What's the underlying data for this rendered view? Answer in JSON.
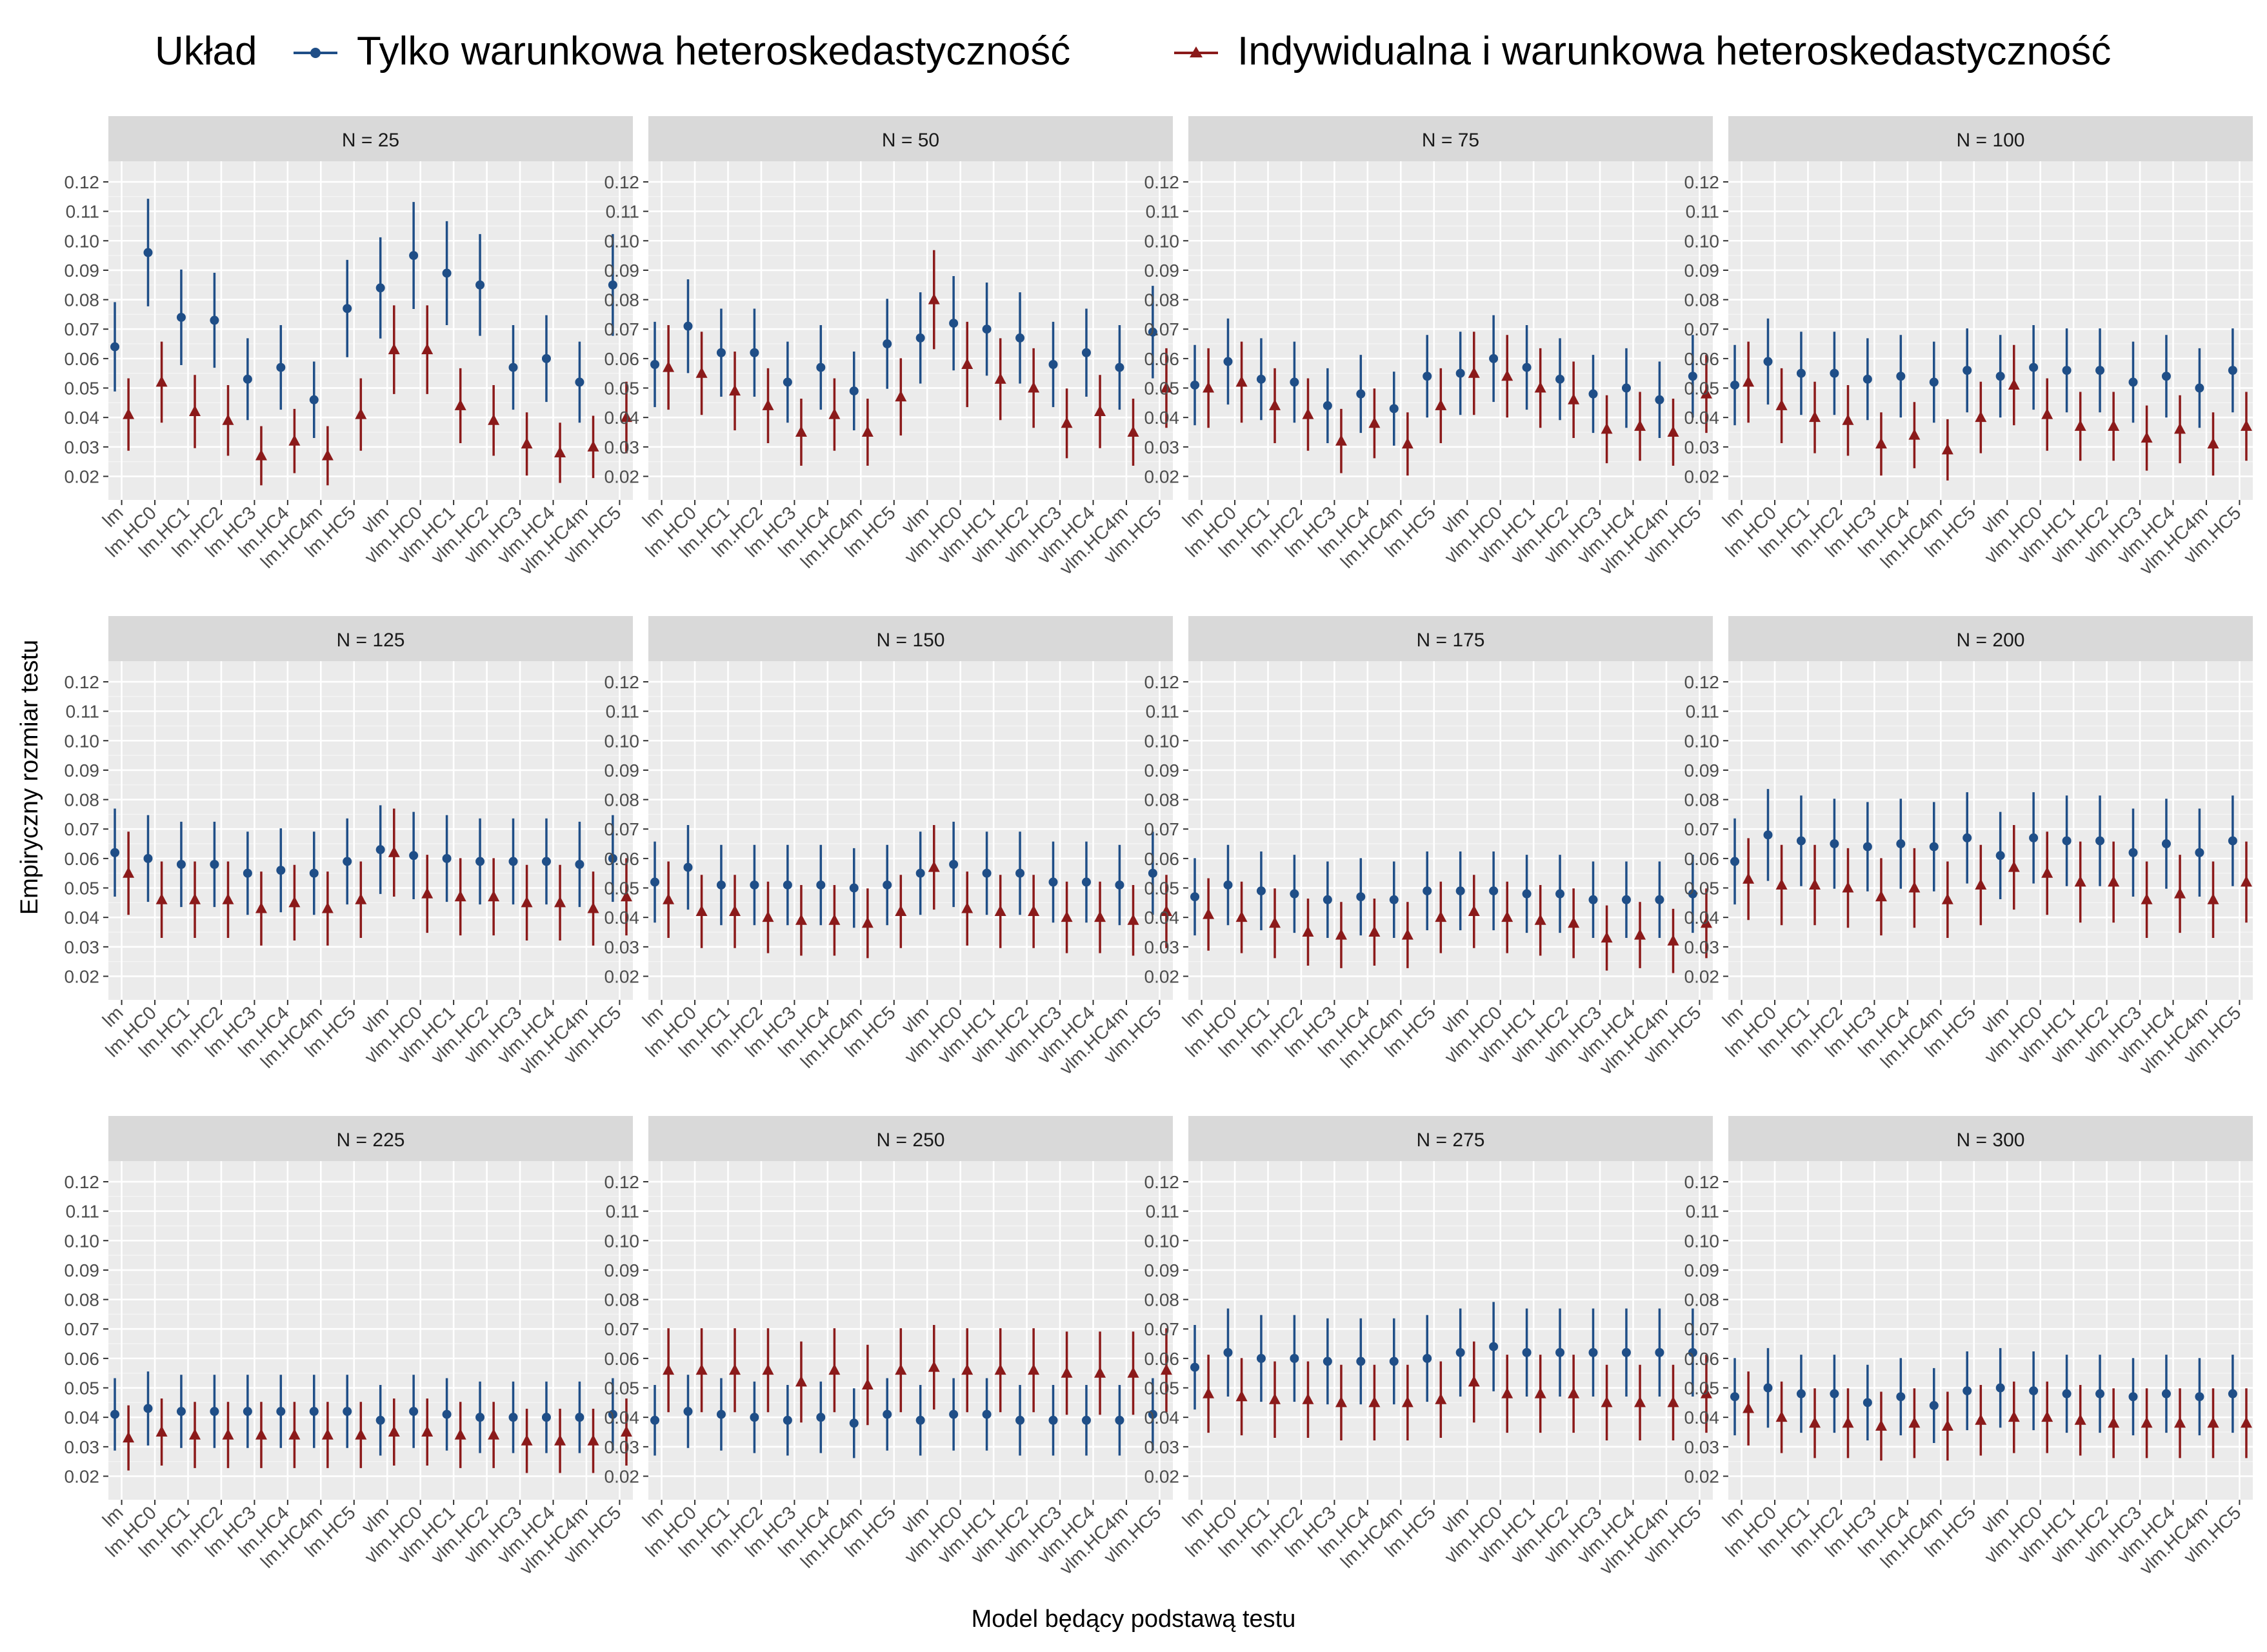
{
  "chart_data": {
    "type": "scatter",
    "subtype": "point-range (dot-and-whisker) faceted grid",
    "xlabel": "Model będący podstawą testu",
    "ylabel": "Empiryczny rozmiar testu",
    "ylim": [
      0.012,
      0.127
    ],
    "yticks": [
      0.02,
      0.03,
      0.04,
      0.05,
      0.06,
      0.07,
      0.08,
      0.09,
      0.1,
      0.11,
      0.12
    ],
    "ytick_labels": [
      "0.02",
      "0.03",
      "0.04",
      "0.05",
      "0.06",
      "0.07",
      "0.08",
      "0.09",
      "0.10",
      "0.11",
      "0.12"
    ],
    "grid": true,
    "categories": [
      "lm",
      "lm.HC0",
      "lm.HC1",
      "lm.HC2",
      "lm.HC3",
      "lm.HC4",
      "lm.HC4m",
      "lm.HC5",
      "vlm",
      "vlm.HC0",
      "vlm.HC1",
      "vlm.HC2",
      "vlm.HC3",
      "vlm.HC4",
      "vlm.HC4m",
      "vlm.HC5"
    ],
    "legend": {
      "title": "Układ",
      "position": "top",
      "items": [
        {
          "label": "Tylko warunkowa heteroskedastyczność",
          "color": "#1f4e87",
          "marker": "circle"
        },
        {
          "label": "Indywidualna i warunkowa heteroskedastyczność",
          "color": "#8b1a1a",
          "marker": "triangle"
        }
      ]
    },
    "facets": [
      {
        "title": "N = 25",
        "blue": [
          0.064,
          0.096,
          0.074,
          0.073,
          0.053,
          0.057,
          0.046,
          0.077,
          0.084,
          0.095,
          0.089,
          0.085,
          0.057,
          0.06,
          0.052,
          0.085
        ],
        "red": [
          0.041,
          0.052,
          0.042,
          0.039,
          0.027,
          0.032,
          0.027,
          0.041,
          0.063,
          0.063,
          0.044,
          0.039,
          0.031,
          0.028,
          0.03,
          0.04
        ]
      },
      {
        "title": "N = 50",
        "blue": [
          0.058,
          0.071,
          0.062,
          0.062,
          0.052,
          0.057,
          0.049,
          0.065,
          0.067,
          0.072,
          0.07,
          0.067,
          0.058,
          0.062,
          0.057,
          0.069
        ],
        "red": [
          0.057,
          0.055,
          0.049,
          0.044,
          0.035,
          0.041,
          0.035,
          0.047,
          0.08,
          0.058,
          0.053,
          0.05,
          0.038,
          0.042,
          0.035,
          0.05
        ]
      },
      {
        "title": "N = 75",
        "blue": [
          0.051,
          0.059,
          0.053,
          0.052,
          0.044,
          0.048,
          0.043,
          0.054,
          0.055,
          0.06,
          0.057,
          0.053,
          0.048,
          0.05,
          0.046,
          0.054
        ],
        "red": [
          0.05,
          0.052,
          0.044,
          0.041,
          0.032,
          0.038,
          0.031,
          0.044,
          0.055,
          0.054,
          0.05,
          0.046,
          0.036,
          0.037,
          0.035,
          0.048
        ]
      },
      {
        "title": "N = 100",
        "blue": [
          0.051,
          0.059,
          0.055,
          0.055,
          0.053,
          0.054,
          0.052,
          0.056,
          0.054,
          0.057,
          0.056,
          0.056,
          0.052,
          0.054,
          0.05,
          0.056
        ],
        "red": [
          0.052,
          0.044,
          0.04,
          0.039,
          0.031,
          0.034,
          0.029,
          0.04,
          0.051,
          0.041,
          0.037,
          0.037,
          0.033,
          0.036,
          0.031,
          0.037
        ]
      },
      {
        "title": "N = 125",
        "blue": [
          0.062,
          0.06,
          0.058,
          0.058,
          0.055,
          0.056,
          0.055,
          0.059,
          0.063,
          0.061,
          0.06,
          0.059,
          0.059,
          0.059,
          0.058,
          0.06
        ],
        "red": [
          0.055,
          0.046,
          0.046,
          0.046,
          0.043,
          0.045,
          0.043,
          0.046,
          0.062,
          0.048,
          0.047,
          0.047,
          0.045,
          0.045,
          0.043,
          0.047
        ]
      },
      {
        "title": "N = 150",
        "blue": [
          0.052,
          0.057,
          0.051,
          0.051,
          0.051,
          0.051,
          0.05,
          0.051,
          0.055,
          0.058,
          0.055,
          0.055,
          0.052,
          0.052,
          0.051,
          0.055
        ],
        "red": [
          0.046,
          0.042,
          0.042,
          0.04,
          0.039,
          0.039,
          0.038,
          0.042,
          0.057,
          0.043,
          0.042,
          0.042,
          0.04,
          0.04,
          0.039,
          0.042
        ]
      },
      {
        "title": "N = 175",
        "blue": [
          0.047,
          0.051,
          0.049,
          0.048,
          0.046,
          0.047,
          0.046,
          0.049,
          0.049,
          0.049,
          0.048,
          0.048,
          0.046,
          0.046,
          0.046,
          0.048
        ],
        "red": [
          0.041,
          0.04,
          0.038,
          0.035,
          0.034,
          0.035,
          0.034,
          0.04,
          0.042,
          0.04,
          0.039,
          0.038,
          0.033,
          0.034,
          0.032,
          0.038
        ]
      },
      {
        "title": "N = 200",
        "blue": [
          0.059,
          0.068,
          0.066,
          0.065,
          0.064,
          0.065,
          0.064,
          0.067,
          0.061,
          0.067,
          0.066,
          0.066,
          0.062,
          0.065,
          0.062,
          0.066
        ],
        "red": [
          0.053,
          0.051,
          0.051,
          0.05,
          0.047,
          0.05,
          0.046,
          0.051,
          0.057,
          0.055,
          0.052,
          0.052,
          0.046,
          0.048,
          0.046,
          0.052
        ]
      },
      {
        "title": "N = 225",
        "blue": [
          0.041,
          0.043,
          0.042,
          0.042,
          0.042,
          0.042,
          0.042,
          0.042,
          0.039,
          0.042,
          0.041,
          0.04,
          0.04,
          0.04,
          0.04,
          0.041
        ],
        "red": [
          0.033,
          0.035,
          0.034,
          0.034,
          0.034,
          0.034,
          0.034,
          0.034,
          0.035,
          0.035,
          0.034,
          0.034,
          0.032,
          0.032,
          0.032,
          0.035
        ]
      },
      {
        "title": "N = 250",
        "blue": [
          0.039,
          0.042,
          0.041,
          0.04,
          0.039,
          0.04,
          0.038,
          0.041,
          0.039,
          0.041,
          0.041,
          0.039,
          0.039,
          0.039,
          0.039,
          0.041
        ],
        "red": [
          0.056,
          0.056,
          0.056,
          0.056,
          0.052,
          0.056,
          0.051,
          0.056,
          0.057,
          0.056,
          0.056,
          0.056,
          0.055,
          0.055,
          0.055,
          0.056
        ]
      },
      {
        "title": "N = 275",
        "blue": [
          0.057,
          0.062,
          0.06,
          0.06,
          0.059,
          0.059,
          0.059,
          0.06,
          0.062,
          0.064,
          0.062,
          0.062,
          0.062,
          0.062,
          0.062,
          0.062
        ],
        "red": [
          0.048,
          0.047,
          0.046,
          0.046,
          0.045,
          0.045,
          0.045,
          0.046,
          0.052,
          0.048,
          0.048,
          0.048,
          0.045,
          0.045,
          0.045,
          0.048
        ]
      },
      {
        "title": "N = 300",
        "blue": [
          0.047,
          0.05,
          0.048,
          0.048,
          0.045,
          0.047,
          0.044,
          0.049,
          0.05,
          0.049,
          0.048,
          0.048,
          0.047,
          0.048,
          0.047,
          0.048
        ],
        "red": [
          0.043,
          0.04,
          0.038,
          0.038,
          0.037,
          0.038,
          0.037,
          0.039,
          0.04,
          0.04,
          0.039,
          0.038,
          0.038,
          0.038,
          0.038,
          0.038
        ]
      }
    ]
  }
}
